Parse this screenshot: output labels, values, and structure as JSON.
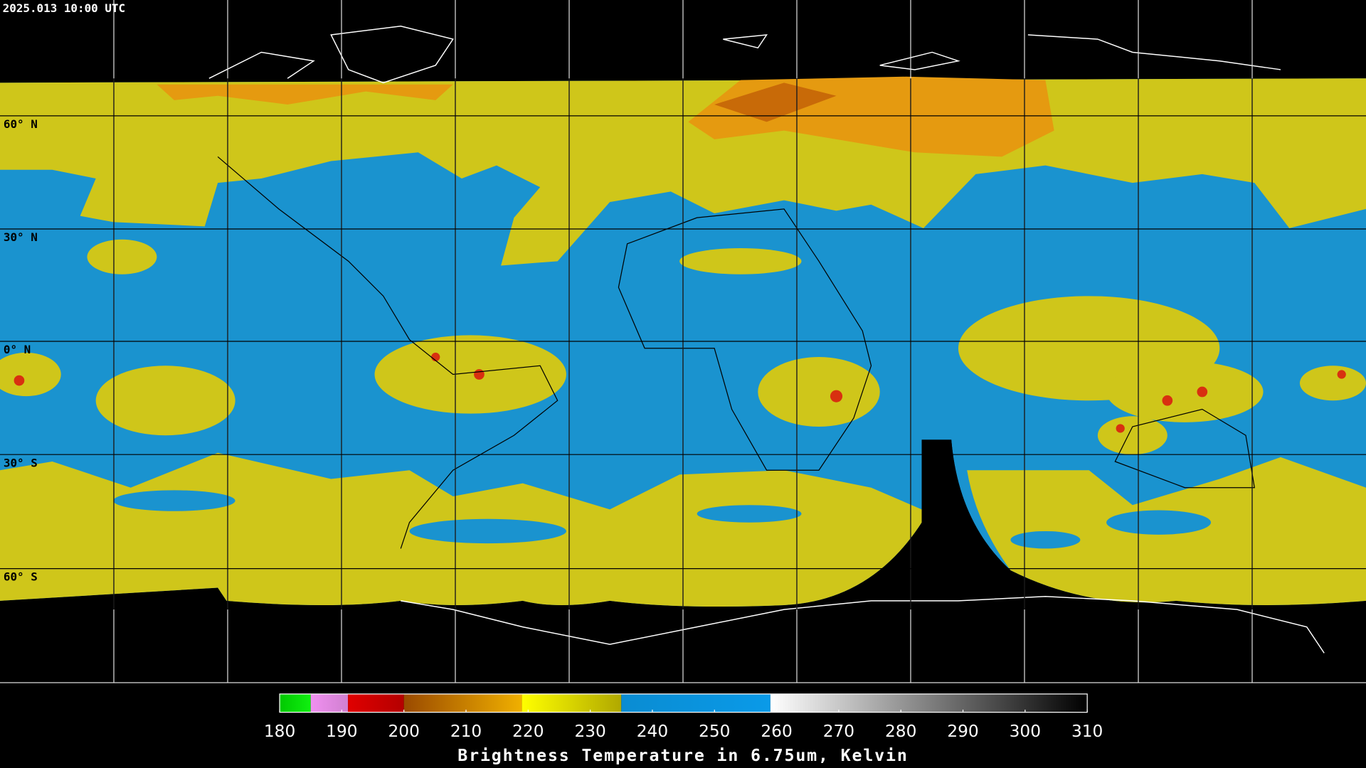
{
  "header": {
    "timestamp": "2025.013 10:00 UTC"
  },
  "map": {
    "latitude_labels": [
      "60° N",
      "30° N",
      "0° N",
      "30° S",
      "60° S"
    ]
  },
  "colorbar": {
    "title": "Brightness Temperature in 6.75um, Kelvin",
    "range": [
      180,
      310
    ],
    "ticks": [
      180,
      190,
      200,
      210,
      220,
      230,
      240,
      250,
      260,
      270,
      280,
      290,
      300,
      310
    ],
    "segments": [
      {
        "from": 180,
        "to": 185,
        "colors": [
          "#00c800",
          "#10f010"
        ]
      },
      {
        "from": 185,
        "to": 191,
        "colors": [
          "#f090f0",
          "#d080d0"
        ]
      },
      {
        "from": 191,
        "to": 200,
        "colors": [
          "#e00000",
          "#b40000"
        ]
      },
      {
        "from": 200,
        "to": 219,
        "colors": [
          "#9a4a00",
          "#f0b000"
        ]
      },
      {
        "from": 219,
        "to": 235,
        "colors": [
          "#ffff00",
          "#b0a800"
        ]
      },
      {
        "from": 235,
        "to": 259,
        "colors": [
          "#0a8cd2",
          "#0a9ae8"
        ]
      },
      {
        "from": 259,
        "to": 310,
        "colors": [
          "#ffffff",
          "#000000"
        ]
      }
    ]
  }
}
